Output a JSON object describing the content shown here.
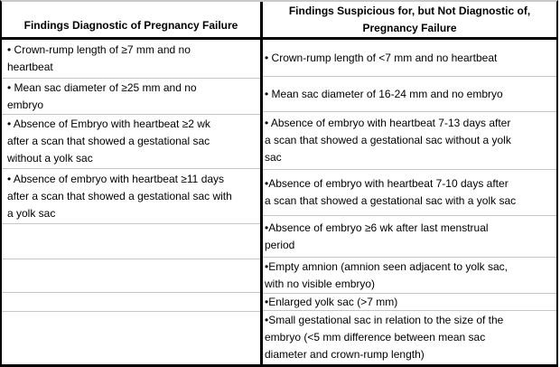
{
  "table": {
    "colors": {
      "outer_border": "#000000",
      "top_border": "#c9c9c9",
      "row_divider": "#c6c6c6",
      "text": "#000000",
      "background": "#ffffff"
    },
    "columns": [
      {
        "id": "diagnostic",
        "header_lines": [
          "Findings Diagnostic of Pregnancy Failure"
        ],
        "rows": [
          {
            "lines": [
              "• Crown-rump length of ≥7 mm and no",
              "heartbeat"
            ]
          },
          {
            "lines": [
              "• Mean sac diameter of ≥25 mm and no",
              "embryo"
            ]
          },
          {
            "lines": [
              "• Absence of Embryo with heartbeat ≥2 wk",
              "after a scan that showed a gestational sac",
              "without a yolk sac"
            ]
          },
          {
            "lines": [
              "• Absence of embryo with heartbeat ≥11 days",
              "after a scan that showed a gestational sac with",
              "a yolk sac"
            ]
          },
          {
            "lines": []
          },
          {
            "lines": []
          },
          {
            "lines": []
          },
          {
            "lines": []
          }
        ]
      },
      {
        "id": "suspicious",
        "header_lines": [
          "Findings Suspicious for, but Not Diagnostic of,",
          "Pregnancy Failure"
        ],
        "rows": [
          {
            "lines": [
              "• Crown-rump length of <7 mm and no heartbeat"
            ]
          },
          {
            "lines": [
              "• Mean sac diameter of 16-24 mm and no embryo"
            ]
          },
          {
            "lines": [
              "• Absence of embryo with heartbeat 7-13 days after",
              "a scan that showed a gestational sac without a yolk",
              "sac"
            ]
          },
          {
            "lines": [
              "•Absence of embryo with heartbeat 7-10 days after",
              "a scan that showed a gestational sac with a yolk sac"
            ]
          },
          {
            "lines": [
              "•Absence of embryo ≥6 wk after last menstrual",
              "period"
            ]
          },
          {
            "lines": [
              "•Empty amnion (amnion seen adjacent to yolk sac,",
              "with no visible embryo)"
            ]
          },
          {
            "lines": [
              "•Enlarged yolk sac (>7 mm)"
            ]
          },
          {
            "lines": [
              "•Small gestational sac in relation to the size of the",
              "embryo (<5 mm difference between mean sac",
              "diameter and crown-rump length)"
            ]
          }
        ]
      }
    ]
  }
}
